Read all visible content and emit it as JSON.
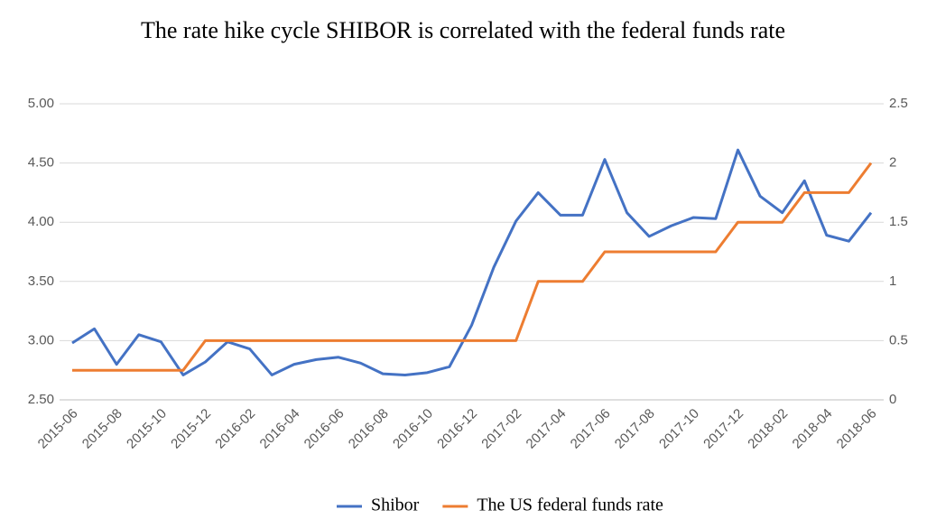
{
  "chart_data": {
    "type": "line",
    "title": "The rate hike cycle SHIBOR is correlated with the federal funds rate",
    "categories": [
      "2015-06",
      null,
      "2015-08",
      null,
      "2015-10",
      null,
      "2015-12",
      null,
      "2016-02",
      null,
      "2016-04",
      null,
      "2016-06",
      null,
      "2016-08",
      null,
      "2016-10",
      null,
      "2016-12",
      null,
      "2017-02",
      null,
      "2017-04",
      null,
      "2017-06",
      null,
      "2017-08",
      null,
      "2017-10",
      null,
      "2017-12",
      null,
      "2018-02",
      null,
      "2018-04",
      null,
      "2018-06"
    ],
    "series": [
      {
        "name": "Shibor",
        "color": "#4472c4",
        "axis": "y",
        "values": [
          2.98,
          3.1,
          2.8,
          3.05,
          2.99,
          2.71,
          2.82,
          2.99,
          2.93,
          2.71,
          2.8,
          2.84,
          2.86,
          2.81,
          2.72,
          2.71,
          2.73,
          2.78,
          3.13,
          3.62,
          4.01,
          4.25,
          4.06,
          4.06,
          4.53,
          4.08,
          3.88,
          3.97,
          4.04,
          4.03,
          4.61,
          4.22,
          4.08,
          4.35,
          3.89,
          3.84,
          4.08
        ]
      },
      {
        "name": "The US federal funds rate",
        "color": "#ed7d31",
        "axis": "y2",
        "values": [
          0.25,
          0.25,
          0.25,
          0.25,
          0.25,
          0.25,
          0.5,
          0.5,
          0.5,
          0.5,
          0.5,
          0.5,
          0.5,
          0.5,
          0.5,
          0.5,
          0.5,
          0.5,
          0.5,
          0.5,
          0.5,
          1,
          1,
          1,
          1.25,
          1.25,
          1.25,
          1.25,
          1.25,
          1.25,
          1.5,
          1.5,
          1.5,
          1.75,
          1.75,
          1.75,
          2
        ]
      }
    ],
    "ylim": [
      2.5,
      5
    ],
    "yticks": [
      {
        "value": 2.5,
        "label": "2.50"
      },
      {
        "value": 3,
        "label": "3.00"
      },
      {
        "value": 3.5,
        "label": "3.50"
      },
      {
        "value": 4,
        "label": "4.00"
      },
      {
        "value": 4.5,
        "label": "4.50"
      },
      {
        "value": 5,
        "label": "5.00"
      }
    ],
    "y2lim": [
      0,
      2.5
    ],
    "y2ticks": [
      0,
      0.5,
      1,
      1.5,
      2,
      2.5
    ],
    "grid": true,
    "legend": "bottom"
  }
}
